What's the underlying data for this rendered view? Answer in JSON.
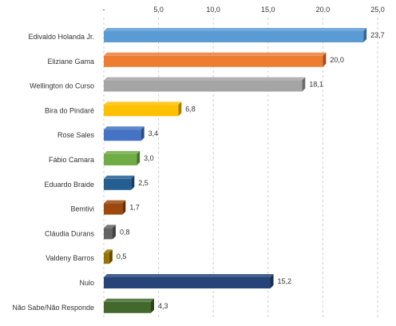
{
  "chart_data": {
    "type": "bar",
    "orientation": "horizontal",
    "categories": [
      "Edivaldo Holanda Jr.",
      "Eliziane Gama",
      "Wellington do Curso",
      "Bira do Pindaré",
      "Rose Sales",
      "Fábio Camara",
      "Eduardo Braide",
      "Bemtivi",
      "Cláudia Durans",
      "Valdeny Barros",
      "Nulo",
      "Não Sabe/Não Responde"
    ],
    "values": [
      23.7,
      20.0,
      18.1,
      6.8,
      3.4,
      3.0,
      2.5,
      1.7,
      0.8,
      0.5,
      15.2,
      4.3
    ],
    "value_labels": [
      "23,7",
      "20,0",
      "18,1",
      "6,8",
      "3,4",
      "3,0",
      "2,5",
      "1,7",
      "0,8",
      "0,5",
      "15,2",
      "4,3"
    ],
    "bar_colors": [
      "#5b9bd5",
      "#ed7d31",
      "#a5a5a5",
      "#ffc000",
      "#4472c4",
      "#70ad47",
      "#255e91",
      "#9e480e",
      "#636363",
      "#997300",
      "#264478",
      "#43682b"
    ],
    "xlim": [
      0,
      25
    ],
    "x_ticks": [
      0,
      5,
      10,
      15,
      20,
      25
    ],
    "x_tick_labels": [
      "-",
      "5,0",
      "10,0",
      "15,0",
      "20,0",
      "25,0"
    ],
    "grid": true,
    "axis_position": "top",
    "title": "",
    "xlabel": "",
    "ylabel": ""
  }
}
